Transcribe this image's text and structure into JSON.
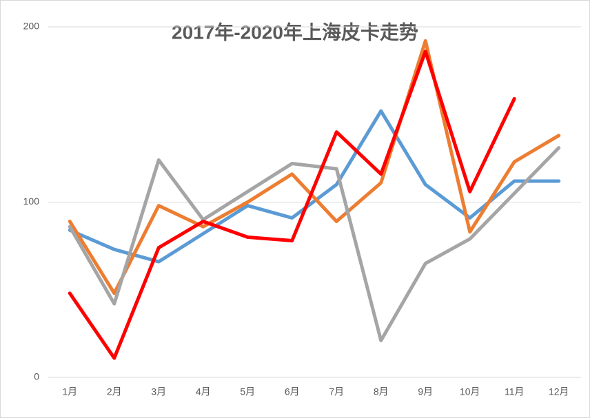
{
  "chart_data": {
    "type": "line",
    "title": "2017年-2020年上海皮卡走势",
    "categories": [
      "1月",
      "2月",
      "3月",
      "4月",
      "5月",
      "6月",
      "7月",
      "8月",
      "9月",
      "10月",
      "11月",
      "12月"
    ],
    "series": [
      {
        "color": "#5b9bd5",
        "values": [
          84,
          73,
          66,
          82,
          98,
          91,
          110,
          152,
          110,
          91,
          112,
          112
        ]
      },
      {
        "color": "#ed7d31",
        "values": [
          89,
          48,
          98,
          86,
          100,
          116,
          89,
          111,
          192,
          83,
          123,
          138
        ]
      },
      {
        "color": "#a5a5a5",
        "values": [
          86,
          42,
          124,
          90,
          106,
          122,
          119,
          21,
          65,
          79,
          105,
          131
        ]
      },
      {
        "color": "#ff0000",
        "values": [
          48,
          11,
          74,
          89,
          80,
          78,
          140,
          116,
          186,
          106,
          159,
          null
        ]
      }
    ],
    "ylim": [
      0,
      200
    ],
    "yticks": [
      0,
      100,
      200
    ],
    "grid": true
  }
}
